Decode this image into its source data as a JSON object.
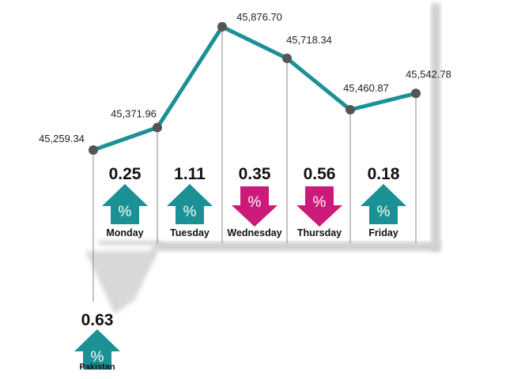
{
  "chart_data": {
    "type": "line",
    "categories": [
      "Monday",
      "Tuesday",
      "Wednesday",
      "Thursday",
      "Friday"
    ],
    "points": [
      {
        "x": "Start",
        "y": 45259.34,
        "label": "45,259.34"
      },
      {
        "x": "Monday",
        "y": 45371.96,
        "label": "45,371.96"
      },
      {
        "x": "Tuesday",
        "y": 45876.7,
        "label": "45,876.70"
      },
      {
        "x": "Wednesday",
        "y": 45718.34,
        "label": "45,718.34"
      },
      {
        "x": "Thursday",
        "y": 45460.87,
        "label": "45,460.87"
      },
      {
        "x": "Friday",
        "y": 45542.78,
        "label": "45,542.78"
      }
    ],
    "daily_changes": [
      {
        "day": "Monday",
        "change": "0.25",
        "direction": "up"
      },
      {
        "day": "Tuesday",
        "change": "1.11",
        "direction": "up"
      },
      {
        "day": "Wednesday",
        "change": "0.35",
        "direction": "down"
      },
      {
        "day": "Thursday",
        "change": "0.56",
        "direction": "down"
      },
      {
        "day": "Friday",
        "change": "0.18",
        "direction": "up"
      }
    ],
    "summary": {
      "label": "Pakistan",
      "change": "0.63",
      "direction": "up"
    },
    "arrow_symbol": "%",
    "colors": {
      "line": "#1b9196",
      "up": "#1b9196",
      "down": "#cc1a7a",
      "marker": "#555555"
    }
  }
}
